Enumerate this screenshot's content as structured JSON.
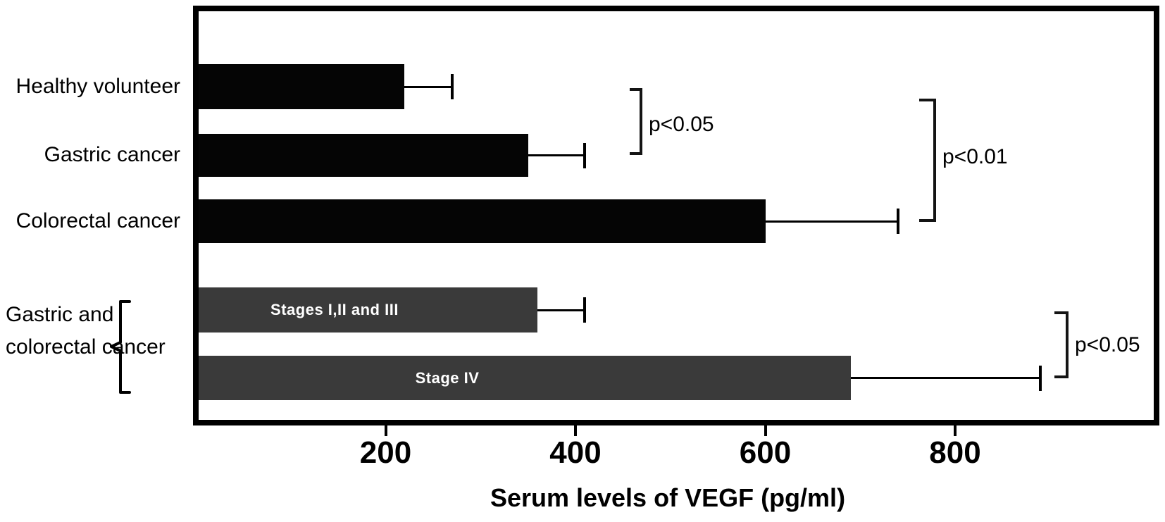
{
  "chart_data": {
    "type": "bar",
    "orientation": "horizontal",
    "title": "",
    "xlabel": "Serum levels of VEGF (pg/ml)",
    "ylabel": "",
    "xlim": [
      0,
      1010
    ],
    "xticks": [
      200,
      400,
      600,
      800
    ],
    "grid": false,
    "bar_colors": {
      "black": "#050505",
      "dark_gray": "#3a3a3a"
    },
    "bars": [
      {
        "label": "Healthy volunteer",
        "bar_text": "",
        "value": 220,
        "error_high": 270,
        "color": "#050505"
      },
      {
        "label": "Gastric cancer",
        "bar_text": "",
        "value": 350,
        "error_high": 410,
        "color": "#050505"
      },
      {
        "label": "Colorectal cancer",
        "bar_text": "",
        "value": 600,
        "error_high": 740,
        "color": "#050505"
      },
      {
        "label": "Gastric and colorectal cancer",
        "bar_text": "Stages I,II and III",
        "value": 360,
        "error_high": 410,
        "color": "#3a3a3a"
      },
      {
        "label": "Gastric and colorectal cancer",
        "bar_text": "Stage IV",
        "value": 690,
        "error_high": 890,
        "color": "#3a3a3a"
      }
    ],
    "group_label": {
      "line1": "Gastric and",
      "line2": "colorectal cancer",
      "full": "Gastric and colorectal cancer"
    },
    "significance": [
      {
        "label": "p<0.05",
        "compares": [
          "Healthy volunteer",
          "Gastric cancer"
        ]
      },
      {
        "label": "p<0.01",
        "compares": [
          "Healthy volunteer",
          "Colorectal cancer"
        ]
      },
      {
        "label": "p<0.05",
        "compares": [
          "Stages I,II and III",
          "Stage IV"
        ]
      }
    ]
  }
}
